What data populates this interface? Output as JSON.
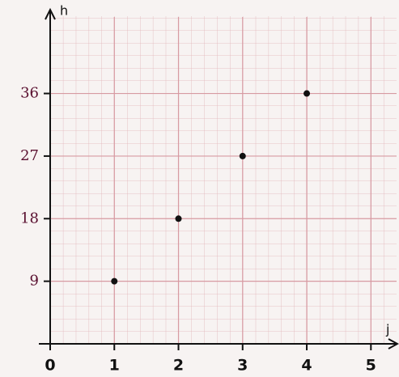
{
  "chart_data": {
    "type": "scatter",
    "x_label": "j",
    "y_label": "h",
    "x": [
      1,
      2,
      3,
      4
    ],
    "values": [
      9,
      18,
      27,
      36
    ],
    "color": "#111111",
    "xlim": [
      0,
      5.4
    ],
    "ylim": [
      0,
      47
    ],
    "xticks": [
      0,
      1,
      2,
      3,
      4,
      5
    ],
    "yticks": [
      9,
      18,
      27,
      36
    ],
    "grid": true
  }
}
